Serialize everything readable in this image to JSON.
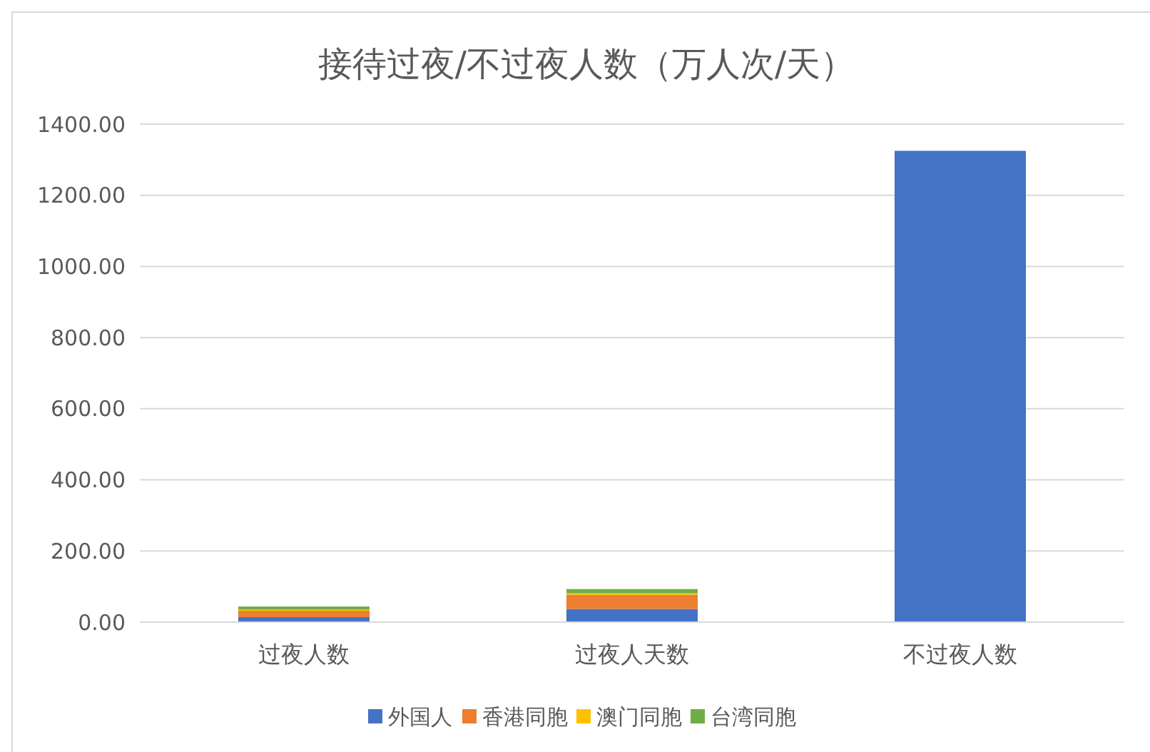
{
  "chart_data": {
    "type": "bar",
    "title": "接待过夜/不过夜人数（万人次/天）",
    "categories": [
      "过夜人数",
      "过夜人天数",
      "不过夜人数"
    ],
    "stacked": true,
    "series": [
      {
        "name": "外国人",
        "color": "#4472c4",
        "values": [
          14,
          37,
          1325
        ]
      },
      {
        "name": "香港同胞",
        "color": "#ed7d31",
        "values": [
          18,
          40,
          0
        ]
      },
      {
        "name": "澳门同胞",
        "color": "#ffc000",
        "values": [
          3,
          4,
          0
        ]
      },
      {
        "name": "台湾同胞",
        "color": "#70ad47",
        "values": [
          9,
          12,
          0
        ]
      }
    ],
    "ylim": [
      0,
      1400
    ],
    "yticks": [
      {
        "value": 0,
        "label": "0.00"
      },
      {
        "value": 200,
        "label": "200.00"
      },
      {
        "value": 400,
        "label": "400.00"
      },
      {
        "value": 600,
        "label": "600.00"
      },
      {
        "value": 800,
        "label": "800.00"
      },
      {
        "value": 1000,
        "label": "1000.00"
      },
      {
        "value": 1200,
        "label": "1200.00"
      },
      {
        "value": 1400,
        "label": "1400.00"
      }
    ],
    "grid": "y",
    "legend": "bottom"
  }
}
